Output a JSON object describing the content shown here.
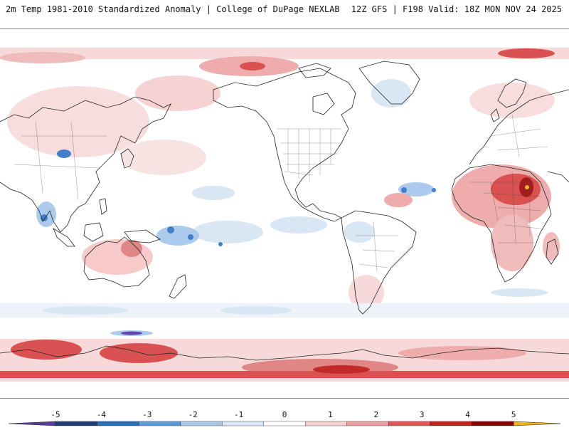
{
  "header": {
    "title_left": "2m Temp 1981-2010 Standardized Anomaly | College of DuPage NEXLAB",
    "title_right": "12Z GFS | F198 Valid: 18Z MON NOV 24 2025"
  },
  "colorbar": {
    "labels": [
      "-5",
      "-4",
      "-3",
      "-2",
      "-1",
      "0",
      "1",
      "2",
      "3",
      "4",
      "5"
    ],
    "colors": [
      "#5a3a9a",
      "#203a70",
      "#2b6fb8",
      "#5c9bd6",
      "#a9c8e8",
      "#dce8f5",
      "#ffffff",
      "#f6d0d0",
      "#eca0a0",
      "#dd5a5a",
      "#c02020",
      "#800000",
      "#f0b020"
    ]
  },
  "palette": {
    "warm_light": "#f8d8d8",
    "warm_mid": "#eea8a8",
    "warm_strong": "#d84848",
    "warm_extreme": "#a01010",
    "cool_light": "#d8e6f4",
    "cool_mid": "#a8c8ea",
    "cool_strong": "#3a78c8",
    "cool_extreme": "#5a3aa8",
    "coastline": "#222222"
  }
}
